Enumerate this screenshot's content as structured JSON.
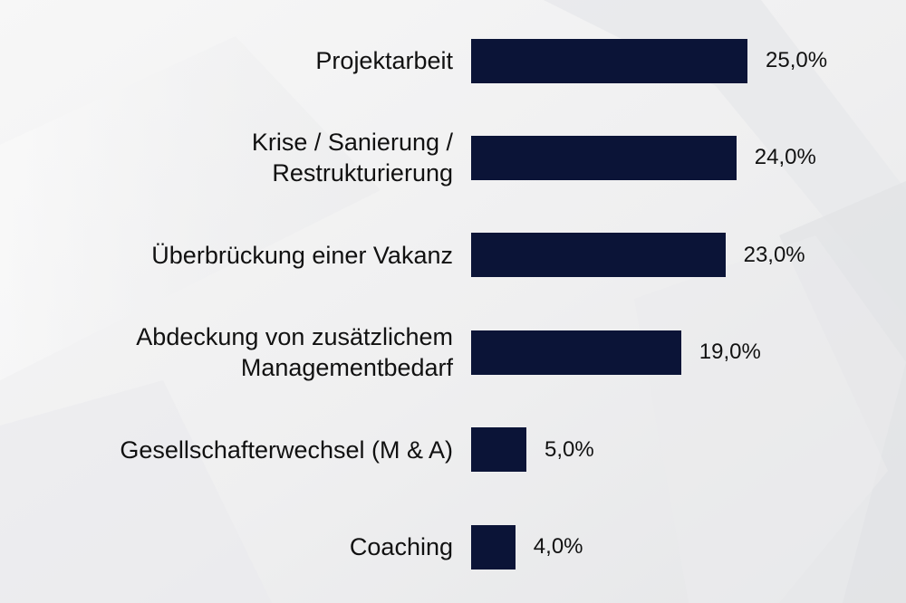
{
  "chart_data": {
    "type": "bar",
    "orientation": "horizontal",
    "categories": [
      "Projektarbeit",
      "Krise / Sanierung / Restrukturierung",
      "Überbrückung einer Vakanz",
      "Abdeckung von zusätzlichem Managementbedarf",
      "Gesellschafterwechsel (M & A)",
      "Coaching"
    ],
    "category_lines": [
      [
        "Projektarbeit"
      ],
      [
        "Krise / Sanierung /",
        "Restrukturierung"
      ],
      [
        "Überbrückung einer Vakanz"
      ],
      [
        "Abdeckung von zusätzlichem",
        "Managementbedarf"
      ],
      [
        "Gesellschafterwechsel (M & A)"
      ],
      [
        "Coaching"
      ]
    ],
    "values": [
      25.0,
      24.0,
      23.0,
      19.0,
      5.0,
      4.0
    ],
    "value_labels": [
      "25,0%",
      "24,0%",
      "23,0%",
      "19,0%",
      "5,0%",
      "4,0%"
    ],
    "xlim": [
      0,
      25
    ],
    "title": "",
    "xlabel": "",
    "ylabel": "",
    "grid": false,
    "legend": "none",
    "bar_color": "#0b1437",
    "background_color": "#f1f1f2",
    "text_color": "#111111"
  }
}
